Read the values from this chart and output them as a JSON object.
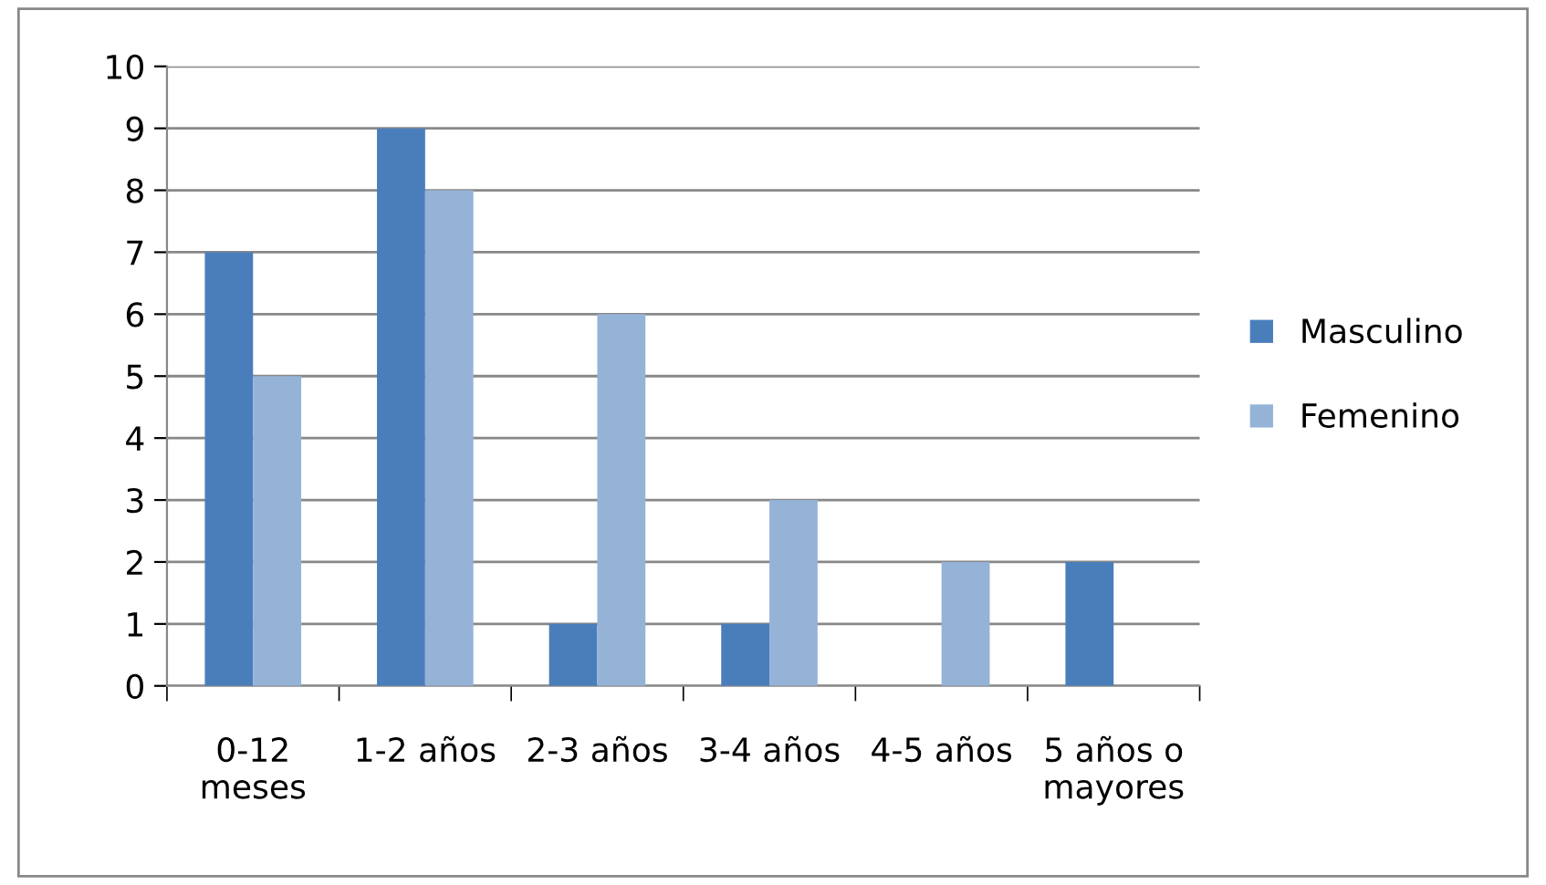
{
  "chart_data": {
    "type": "bar",
    "categories": [
      "0-12\nmeses",
      "1-2 años",
      "2-3 años",
      "3-4 años",
      "4-5 años",
      "5 años o\nmayores"
    ],
    "series": [
      {
        "name": "Masculino",
        "color": "#4a7ebb",
        "values": [
          7,
          9,
          1,
          1,
          0,
          2
        ]
      },
      {
        "name": "Femenino",
        "color": "#95b3d7",
        "values": [
          5,
          8,
          6,
          3,
          2,
          0
        ]
      }
    ],
    "ylim": [
      0,
      10
    ],
    "yticks": [
      0,
      1,
      2,
      3,
      4,
      5,
      6,
      7,
      8,
      9,
      10
    ],
    "grid": "y",
    "legend": "right"
  }
}
